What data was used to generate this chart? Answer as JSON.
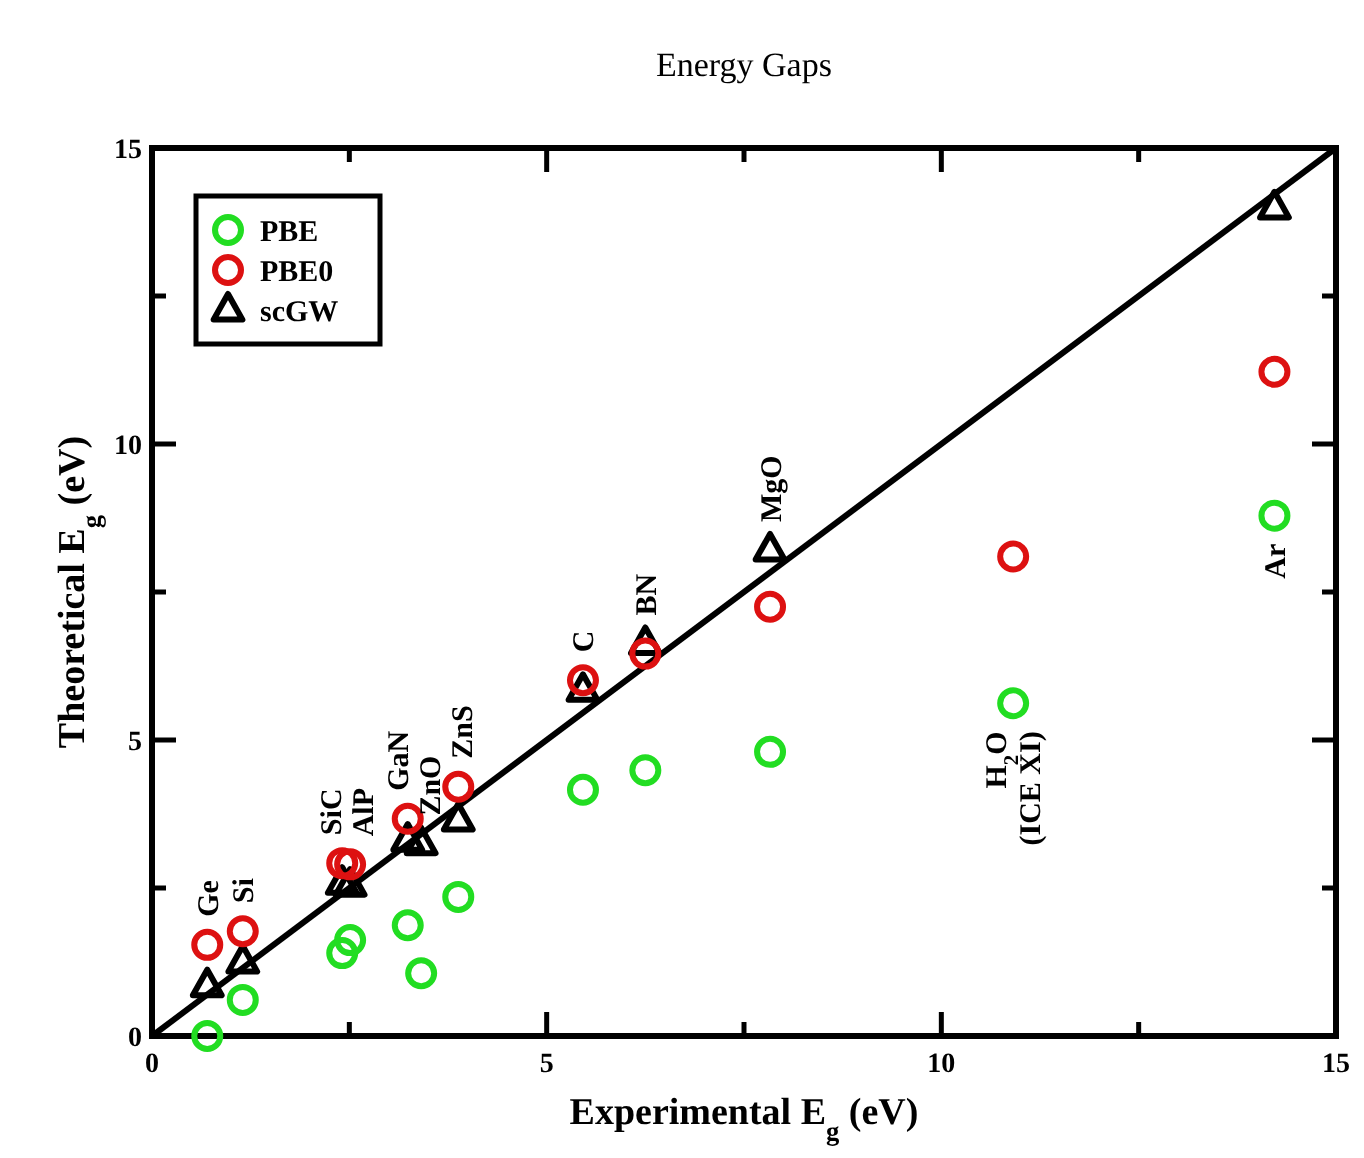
{
  "chart_data": {
    "type": "scatter",
    "title": "Energy Gaps",
    "xlabel": "Experimental  E$_{g}$ (eV)",
    "ylabel": "Theoretical E$_{g}$ (eV)",
    "x": [
      0.7,
      1.15,
      2.41,
      2.51,
      3.24,
      3.41,
      3.88,
      5.46,
      6.25,
      7.83,
      10.91,
      14.22
    ],
    "series": [
      {
        "name": "PBE",
        "color": "#22dd22",
        "marker": "circle",
        "values": [
          0.0,
          0.61,
          1.4,
          1.62,
          1.87,
          1.06,
          2.35,
          4.16,
          4.49,
          4.8,
          5.62,
          8.79
        ]
      },
      {
        "name": "PBE0",
        "color": "#dd1111",
        "marker": "circle",
        "values": [
          1.54,
          1.77,
          2.92,
          2.9,
          3.67,
          null,
          4.21,
          6.01,
          6.46,
          7.25,
          8.1,
          11.22
        ]
      },
      {
        "name": "scGW",
        "color": "#000000",
        "marker": "triangle",
        "values": [
          0.85,
          1.25,
          2.58,
          2.55,
          3.31,
          3.25,
          3.65,
          5.84,
          6.63,
          8.21,
          null,
          13.99
        ]
      },
      {
        "type": "line",
        "color": "#000000",
        "marker": "none",
        "x": [
          0,
          15
        ],
        "values": [
          0,
          15
        ]
      }
    ],
    "xlim": [
      0,
      15
    ],
    "ylim": [
      0,
      15
    ],
    "xticks": [
      0,
      {
        "value": 2.5,
        "label": null
      },
      5,
      {
        "value": 7.5,
        "label": null
      },
      10,
      {
        "value": 12.5,
        "label": null
      },
      15
    ],
    "yticks": [
      0,
      {
        "value": 2.5,
        "label": null
      },
      5,
      {
        "value": 7.5,
        "label": null
      },
      10,
      {
        "value": 12.5,
        "label": null
      },
      15
    ],
    "grid": false,
    "legend": "top left",
    "annotations": [
      {
        "text": "Ge",
        "x": 0.7,
        "y": 1.54
      },
      {
        "text": "Si",
        "x": 1.15,
        "y": 1.77
      },
      {
        "text": "SiC",
        "x": 2.41,
        "y": 2.92
      },
      {
        "text": "AlP",
        "x": 2.51,
        "y": 2.9
      },
      {
        "text": "GaN",
        "x": 3.24,
        "y": 3.67
      },
      {
        "text": "ZnO",
        "x": 3.41,
        "y": 3.25
      },
      {
        "text": "ZnS",
        "x": 3.88,
        "y": 4.21
      },
      {
        "text": "C",
        "x": 5.46,
        "y": 6.01
      },
      {
        "text": "BN",
        "x": 6.25,
        "y": 6.63
      },
      {
        "text": "MgO",
        "x": 7.83,
        "y": 8.21
      },
      {
        "text": "H$_{2}$O\n(ICE XI)",
        "x": 10.91,
        "y": 5.62
      },
      {
        "text": "Ar",
        "x": 14.22,
        "y": 8.79
      }
    ]
  }
}
